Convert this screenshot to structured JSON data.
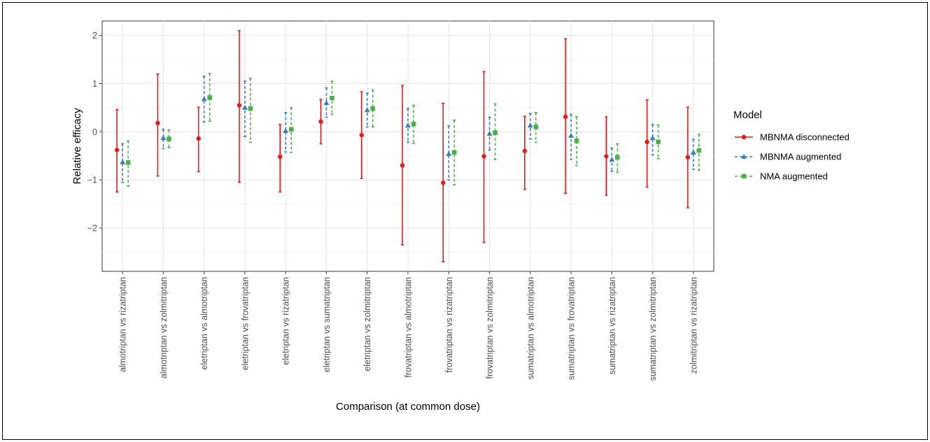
{
  "chart_data": {
    "type": "scatter",
    "xlabel": "Comparison (at common dose)",
    "ylabel": "Relative efficacy",
    "ylim": [
      -2.9,
      2.3
    ],
    "yticks": [
      -2,
      -1,
      0,
      1,
      2
    ],
    "ytick_labels": [
      "−2",
      "−1",
      "0",
      "1",
      "2"
    ],
    "grid": true,
    "legend_position": "right",
    "legend_title": "Model",
    "categories": [
      "almotriptan vs rizatriptan",
      "almotriptan vs zolmitriptan",
      "eletriptan vs almotriptan",
      "eletriptan vs frovatriptan",
      "eletriptan vs rizatriptan",
      "eletriptan vs sumatriptan",
      "eletriptan vs zolmitriptan",
      "frovatriptan vs almotriptan",
      "frovatriptan vs rizatriptan",
      "frovatriptan vs zolmitriptan",
      "sumatriptan vs almotriptan",
      "sumatriptan vs frovatriptan",
      "sumatriptan vs rizatriptan",
      "sumatriptan vs zolmitriptan",
      "zolmitriptan vs rizatriptan"
    ],
    "series": [
      {
        "name": "MBNMA disconnected",
        "color": "#e41a1c",
        "marker": "circle",
        "line": "solid",
        "estimate": [
          -0.38,
          0.18,
          -0.14,
          0.55,
          -0.52,
          0.21,
          -0.07,
          -0.7,
          -1.06,
          -0.51,
          -0.4,
          0.31,
          -0.51,
          -0.21,
          -0.53
        ],
        "lower": [
          -1.25,
          -0.92,
          -0.83,
          -1.05,
          -1.25,
          -0.25,
          -0.97,
          -2.35,
          -2.7,
          -2.3,
          -1.2,
          -1.28,
          -1.32,
          -1.15,
          -1.58
        ],
        "upper": [
          0.46,
          1.2,
          0.51,
          2.1,
          0.15,
          0.67,
          0.83,
          0.96,
          0.59,
          1.25,
          0.32,
          1.93,
          0.31,
          0.66,
          0.51
        ]
      },
      {
        "name": "MBNMA augmented",
        "color": "#377eb8",
        "marker": "triangle",
        "line": "dashed",
        "estimate": [
          -0.63,
          -0.13,
          0.68,
          0.5,
          0.02,
          0.6,
          0.45,
          0.13,
          -0.46,
          -0.04,
          0.13,
          -0.08,
          -0.58,
          -0.13,
          -0.43
        ],
        "lower": [
          -1.05,
          -0.35,
          0.2,
          -0.1,
          -0.42,
          0.3,
          0.1,
          -0.22,
          -1.0,
          -0.38,
          -0.15,
          -0.57,
          -0.82,
          -0.48,
          -0.78
        ],
        "upper": [
          -0.25,
          0.05,
          1.15,
          1.05,
          0.4,
          0.91,
          0.8,
          0.48,
          0.12,
          0.3,
          0.38,
          0.36,
          -0.34,
          0.15,
          -0.16
        ]
      },
      {
        "name": "NMA augmented",
        "color": "#4daf4a",
        "marker": "square",
        "line": "dashed",
        "estimate": [
          -0.64,
          -0.15,
          0.71,
          0.48,
          0.05,
          0.7,
          0.48,
          0.16,
          -0.43,
          -0.02,
          0.1,
          -0.19,
          -0.53,
          -0.21,
          -0.39
        ],
        "lower": [
          -1.13,
          -0.33,
          0.22,
          -0.22,
          -0.43,
          0.36,
          0.1,
          -0.24,
          -1.1,
          -0.58,
          -0.22,
          -0.7,
          -0.84,
          -0.56,
          -0.8
        ],
        "upper": [
          -0.19,
          0.04,
          1.21,
          1.11,
          0.5,
          1.05,
          0.87,
          0.55,
          0.24,
          0.58,
          0.4,
          0.31,
          -0.25,
          0.14,
          -0.05
        ]
      }
    ]
  }
}
